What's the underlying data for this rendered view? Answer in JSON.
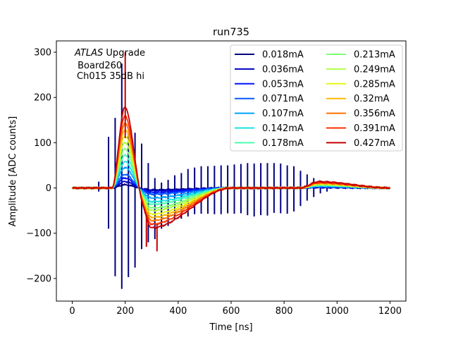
{
  "chart_data": {
    "type": "line",
    "title": "run735",
    "xlabel": "Time [ns]",
    "ylabel": "Amplitude [ADC counts]",
    "xlim": [
      -60,
      1260
    ],
    "ylim": [
      -250,
      325
    ],
    "xticks": [
      0,
      200,
      400,
      600,
      800,
      1000,
      1200
    ],
    "yticks": [
      -200,
      -100,
      0,
      100,
      200,
      300
    ],
    "xtick_labels": [
      "0",
      "200",
      "400",
      "600",
      "800",
      "1000",
      "1200"
    ],
    "ytick_labels": [
      "−200",
      "−100",
      "0",
      "100",
      "200",
      "300"
    ],
    "grid": false,
    "legend_placement": "top-right",
    "legend_columns": 2,
    "annotation": {
      "lines": [
        "Upgrade",
        "Board260",
        "Ch015 35dB hi"
      ],
      "italic_prefix": "ATLAS"
    },
    "sampling": {
      "x_start": 0,
      "x_end": 1200,
      "step": 3.125
    },
    "pulse_model": {
      "peak_time": 198,
      "undershoot_time": 300,
      "tail_end": 600,
      "bump_time": 930
    },
    "series": [
      {
        "name": "0.018mA",
        "color": "#00007f",
        "peak": 7,
        "undershoot": -4,
        "bump": 1,
        "spikes": [
          {
            "x": 100,
            "y1": -8,
            "y2": 14
          },
          {
            "x": 137,
            "y1": -90,
            "y2": 113
          },
          {
            "x": 162,
            "y1": -195,
            "y2": 155
          },
          {
            "x": 187,
            "y1": -223,
            "y2": 275
          },
          {
            "x": 212,
            "y1": -197,
            "y2": 120
          },
          {
            "x": 237,
            "y1": -176,
            "y2": 122
          },
          {
            "x": 262,
            "y1": -135,
            "y2": 98
          },
          {
            "x": 287,
            "y1": -120,
            "y2": 55
          },
          {
            "x": 312,
            "y1": -113,
            "y2": 22
          },
          {
            "x": 337,
            "y1": -90,
            "y2": 12
          },
          {
            "x": 362,
            "y1": -84,
            "y2": 18
          },
          {
            "x": 387,
            "y1": -70,
            "y2": 28
          },
          {
            "x": 412,
            "y1": -68,
            "y2": 33
          },
          {
            "x": 437,
            "y1": -63,
            "y2": 42
          },
          {
            "x": 462,
            "y1": -58,
            "y2": 45
          },
          {
            "x": 487,
            "y1": -57,
            "y2": 48
          },
          {
            "x": 512,
            "y1": -57,
            "y2": 48
          },
          {
            "x": 537,
            "y1": -58,
            "y2": 49
          },
          {
            "x": 562,
            "y1": -58,
            "y2": 50
          },
          {
            "x": 587,
            "y1": -56,
            "y2": 50
          },
          {
            "x": 612,
            "y1": -57,
            "y2": 52
          },
          {
            "x": 637,
            "y1": -56,
            "y2": 53
          },
          {
            "x": 662,
            "y1": -60,
            "y2": 55
          },
          {
            "x": 687,
            "y1": -63,
            "y2": 54
          },
          {
            "x": 712,
            "y1": -60,
            "y2": 55
          },
          {
            "x": 737,
            "y1": -61,
            "y2": 55
          },
          {
            "x": 762,
            "y1": -55,
            "y2": 55
          },
          {
            "x": 787,
            "y1": -56,
            "y2": 54
          },
          {
            "x": 812,
            "y1": -57,
            "y2": 50
          },
          {
            "x": 837,
            "y1": -52,
            "y2": 48
          },
          {
            "x": 862,
            "y1": -40,
            "y2": 38
          },
          {
            "x": 887,
            "y1": -28,
            "y2": 30
          },
          {
            "x": 912,
            "y1": -20,
            "y2": 22
          },
          {
            "x": 937,
            "y1": -12,
            "y2": 16
          },
          {
            "x": 962,
            "y1": -8,
            "y2": 10
          }
        ]
      },
      {
        "name": "0.036mA",
        "color": "#0000c4",
        "peak": 14,
        "undershoot": -6,
        "bump": 1.5
      },
      {
        "name": "0.053mA",
        "color": "#0010ff",
        "peak": 22,
        "undershoot": -10,
        "bump": 2
      },
      {
        "name": "0.071mA",
        "color": "#0058ff",
        "peak": 30,
        "undershoot": -14,
        "bump": 3
      },
      {
        "name": "0.107mA",
        "color": "#00a4ff",
        "peak": 45,
        "undershoot": -22,
        "bump": 4
      },
      {
        "name": "0.142mA",
        "color": "#13e4e3",
        "peak": 58,
        "undershoot": -30,
        "bump": 5
      },
      {
        "name": "0.178mA",
        "color": "#47ffb0",
        "peak": 72,
        "undershoot": -36,
        "bump": 6
      },
      {
        "name": "0.213mA",
        "color": "#7dff7a",
        "peak": 86,
        "undershoot": -44,
        "bump": 7
      },
      {
        "name": "0.249mA",
        "color": "#b0ff47",
        "peak": 100,
        "undershoot": -50,
        "bump": 8
      },
      {
        "name": "0.285mA",
        "color": "#e4f712",
        "peak": 114,
        "undershoot": -58,
        "bump": 9
      },
      {
        "name": "0.32mA",
        "color": "#ffb900",
        "peak": 128,
        "undershoot": -65,
        "bump": 10
      },
      {
        "name": "0.356mA",
        "color": "#ff7300",
        "peak": 142,
        "undershoot": -72,
        "bump": 11
      },
      {
        "name": "0.391mA",
        "color": "#ff3000",
        "peak": 158,
        "undershoot": -80,
        "bump": 12
      },
      {
        "name": "0.427mA",
        "color": "#c40000",
        "peak": 178,
        "undershoot": -88,
        "bump": 14,
        "spikes": [
          {
            "x": 200,
            "y1": 110,
            "y2": 300
          },
          {
            "x": 280,
            "y1": -130,
            "y2": -60
          },
          {
            "x": 320,
            "y1": -140,
            "y2": -80
          }
        ]
      }
    ]
  }
}
